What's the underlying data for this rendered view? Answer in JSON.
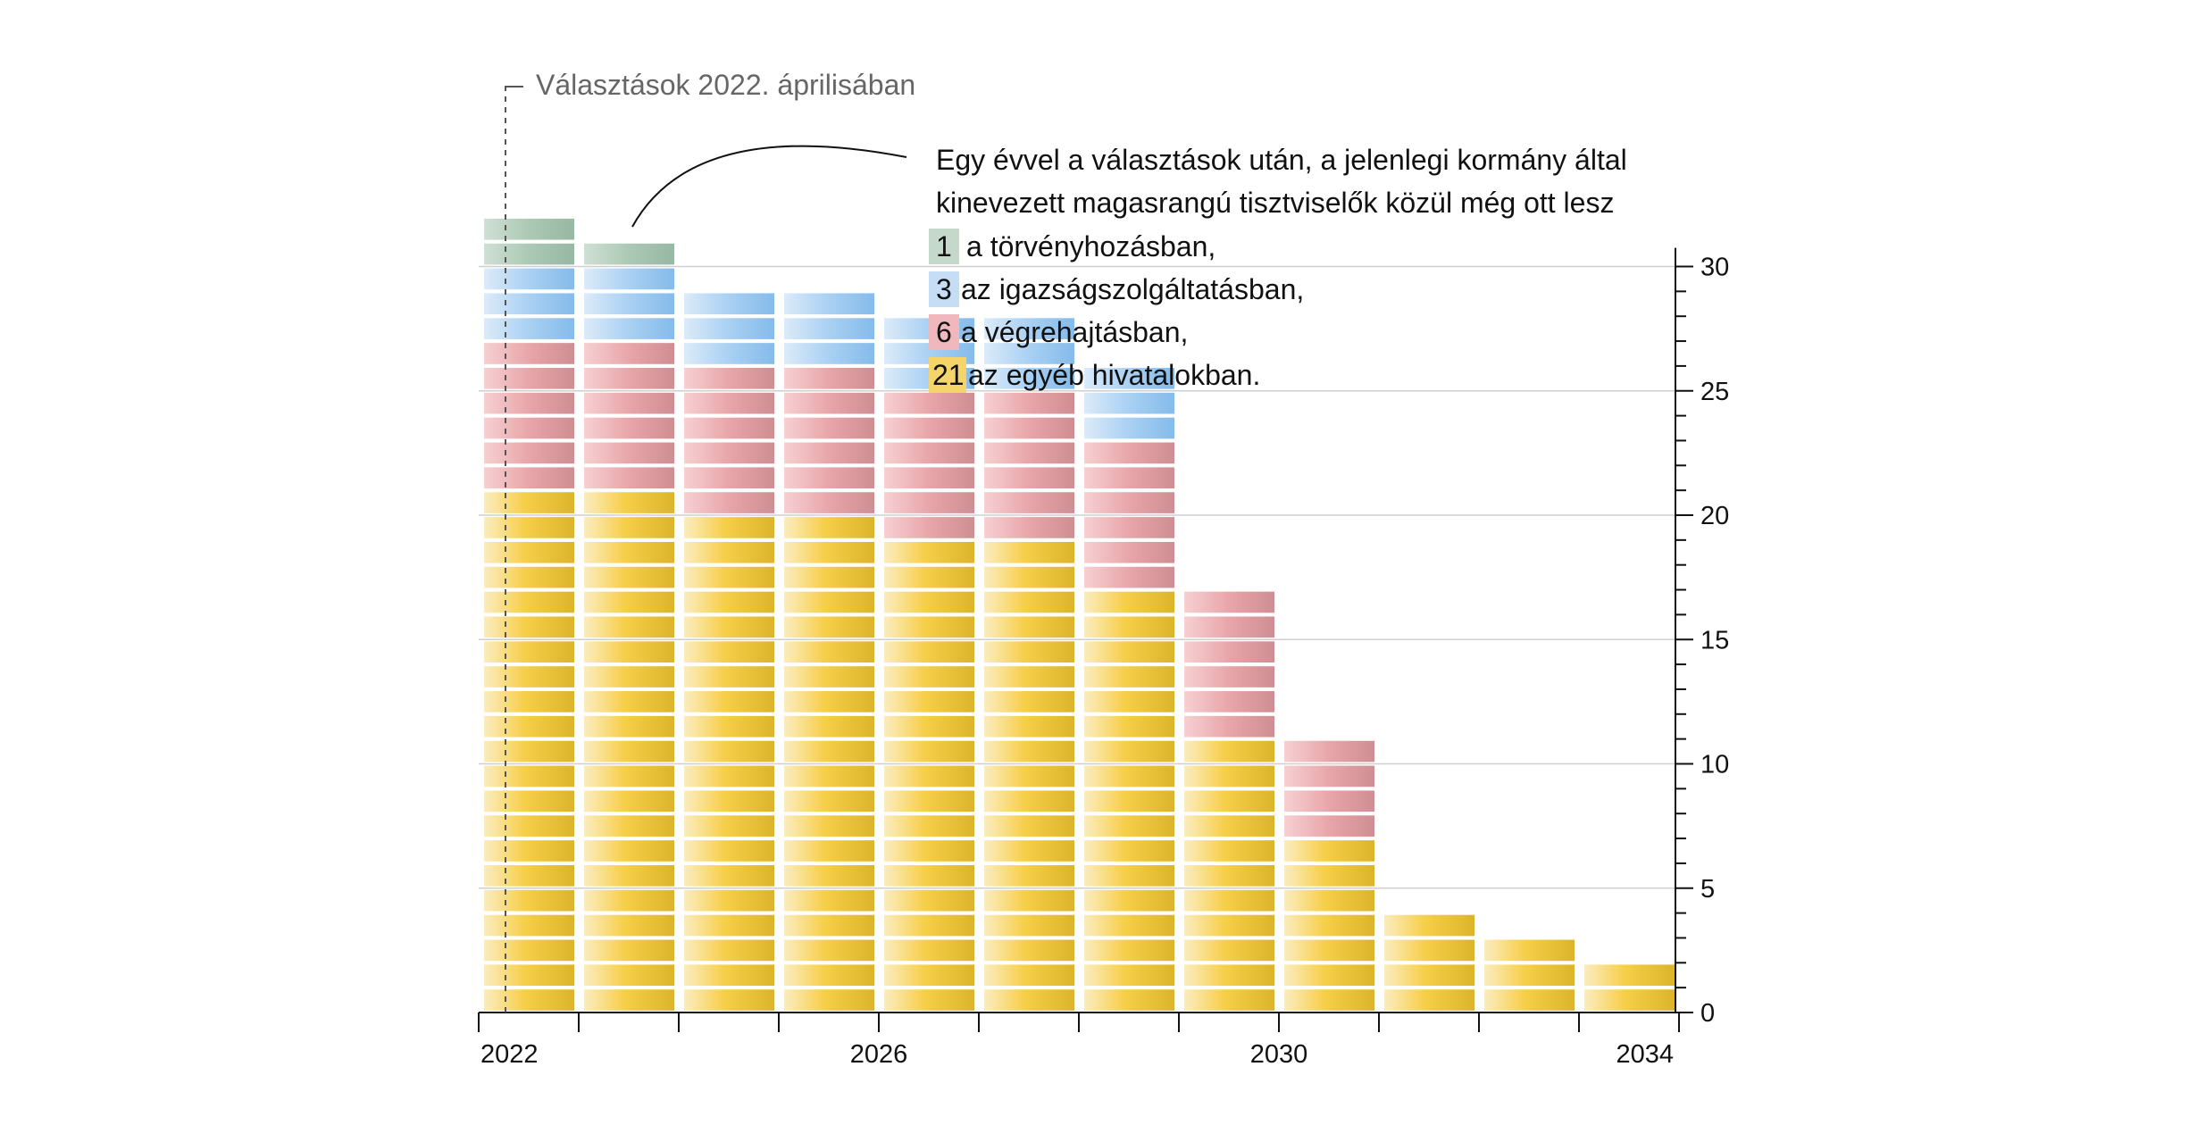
{
  "chart_data": {
    "type": "bar",
    "stacked": true,
    "categories": [
      "2022",
      "2023",
      "2024",
      "2025",
      "2026",
      "2027",
      "2028",
      "2029",
      "2030",
      "2031",
      "2032",
      "2033"
    ],
    "x_tick_labels": [
      "2022",
      "2026",
      "2030",
      "2034"
    ],
    "y_tick_labels": [
      "0",
      "5",
      "10",
      "15",
      "20",
      "25",
      "30"
    ],
    "ylim": [
      0,
      30
    ],
    "y_major_step": 5,
    "y_minor_step": 1,
    "y_axis_side": "right",
    "grid": true,
    "series": [
      {
        "key": "egyeb",
        "values": [
          21,
          21,
          20,
          20,
          19,
          19,
          17,
          11,
          7,
          4,
          3,
          2
        ],
        "color": "#f4c534"
      },
      {
        "key": "vegrehajtas",
        "values": [
          6,
          6,
          6,
          6,
          6,
          6,
          6,
          6,
          4,
          0,
          0,
          0
        ],
        "color": "#e39a9f"
      },
      {
        "key": "igazsag",
        "values": [
          3,
          3,
          3,
          3,
          3,
          3,
          3,
          0,
          0,
          0,
          0,
          0
        ],
        "color": "#7fb9ea"
      },
      {
        "key": "torveny",
        "values": [
          2,
          1,
          0,
          0,
          0,
          0,
          0,
          0,
          0,
          0,
          0,
          0
        ],
        "color": "#9fc3ad"
      }
    ],
    "annotations": {
      "election_label": "Választások 2022. áprilisában",
      "legend_intro": [
        "Egy évvel a választások után, a jelenlegi kormány által",
        "kinevezett magasrangú tisztviselők közül még ott lesz"
      ],
      "legend_items": [
        {
          "count": "1",
          "text": "a törvényhozásban,",
          "color": "#9fc3ad"
        },
        {
          "count": "3",
          "text": "az igazságszolgáltatásban,",
          "color": "#7fb9ea"
        },
        {
          "count": "6",
          "text": "a végrehajtásban,",
          "color": "#e39a9f"
        },
        {
          "count": "21",
          "text": "az egyéb hivatalokban.",
          "color": "#f4c534"
        }
      ]
    }
  }
}
